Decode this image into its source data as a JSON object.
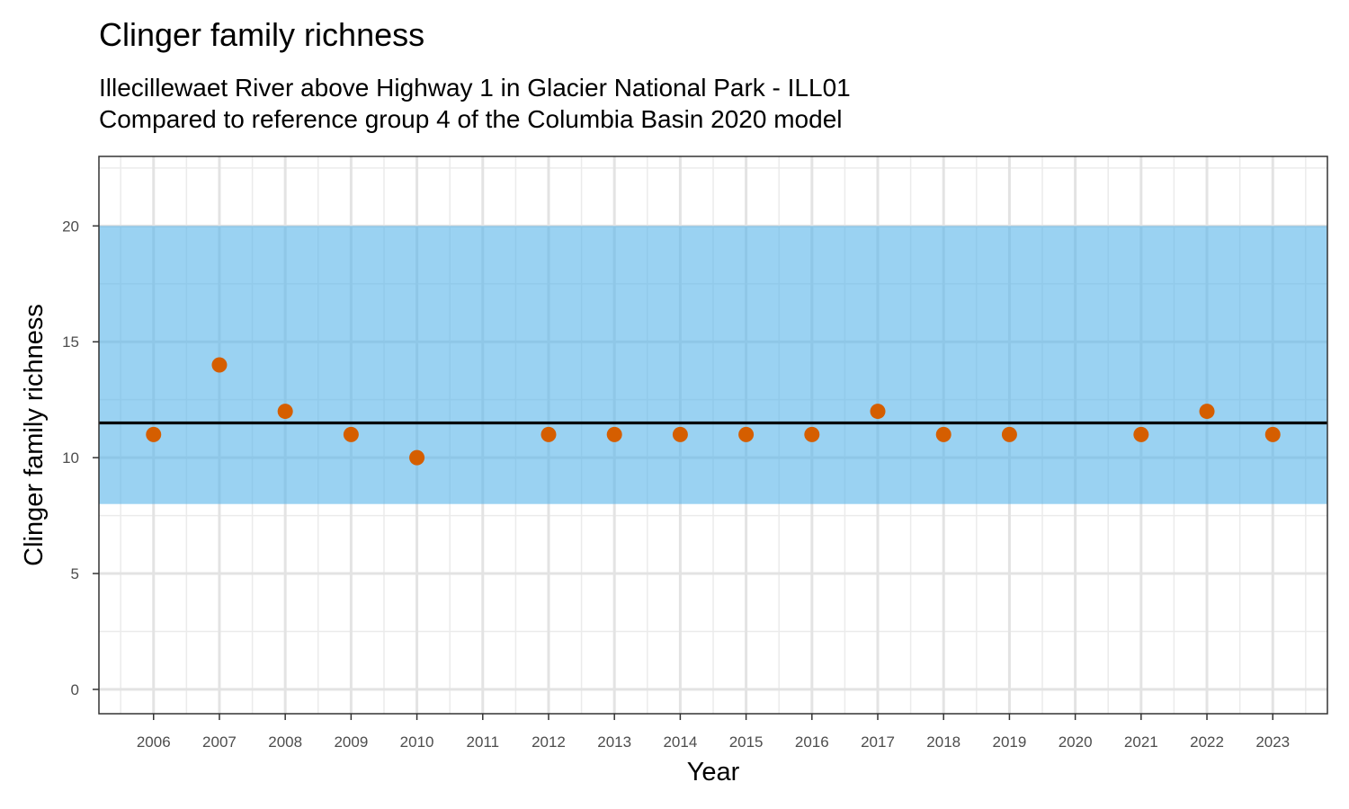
{
  "chart_data": {
    "type": "scatter",
    "title": "Clinger family richness",
    "subtitle_lines": [
      "Illecillewaet River above Highway 1 in Glacier National Park - ILL01",
      "Compared to reference group 4 of the Columbia Basin 2020 model"
    ],
    "xlabel": "Year",
    "ylabel": "Clinger family richness",
    "x_ticks": [
      2006,
      2007,
      2008,
      2009,
      2010,
      2011,
      2012,
      2013,
      2014,
      2015,
      2016,
      2017,
      2018,
      2019,
      2020,
      2021,
      2022,
      2023
    ],
    "y_ticks": [
      0,
      5,
      10,
      15,
      20
    ],
    "xlim": [
      2005.17,
      2023.83
    ],
    "ylim": [
      -1.05,
      23.0
    ],
    "grid": true,
    "reference_band": {
      "ymin": 8,
      "ymax": 20,
      "color": "#56b4e9"
    },
    "reference_line": {
      "y": 11.5,
      "color": "#000000"
    },
    "series": [
      {
        "color": "#d55e00",
        "points": [
          {
            "x": 2006,
            "y": 11
          },
          {
            "x": 2007,
            "y": 14
          },
          {
            "x": 2008,
            "y": 12
          },
          {
            "x": 2009,
            "y": 11
          },
          {
            "x": 2010,
            "y": 10
          },
          {
            "x": 2012,
            "y": 11
          },
          {
            "x": 2013,
            "y": 11
          },
          {
            "x": 2014,
            "y": 11
          },
          {
            "x": 2015,
            "y": 11
          },
          {
            "x": 2016,
            "y": 11
          },
          {
            "x": 2017,
            "y": 12
          },
          {
            "x": 2018,
            "y": 11
          },
          {
            "x": 2019,
            "y": 11
          },
          {
            "x": 2021,
            "y": 11
          },
          {
            "x": 2022,
            "y": 12
          },
          {
            "x": 2023,
            "y": 11
          }
        ]
      }
    ]
  }
}
